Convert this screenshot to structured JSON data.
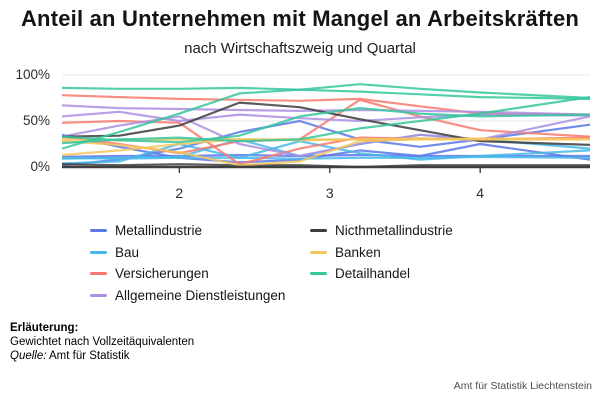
{
  "header": {
    "title": "Anteil an Unternehmen mit Mangel an Arbeitskräften",
    "subtitle": "nach Wirtschaftszweig und Quartal"
  },
  "chart_data": {
    "type": "line",
    "title": "Anteil an Unternehmen mit Mangel an Arbeitskräften",
    "subtitle": "nach Wirtschaftszweig und Quartal",
    "xlabel": "",
    "ylabel": "",
    "xlim": [
      1.22,
      4.73
    ],
    "ylim": [
      0,
      100
    ],
    "x": [
      1.22,
      1.6,
      2.0,
      2.4,
      2.8,
      3.2,
      3.6,
      4.0,
      4.73
    ],
    "xticks": [
      2,
      3,
      4
    ],
    "yticks": [
      {
        "value": 0,
        "label": "0%"
      },
      {
        "value": 50,
        "label": "50%"
      },
      {
        "value": 100,
        "label": "100%"
      }
    ],
    "grid": "horizontal",
    "legend_position": "bottom",
    "axis_color": "#3f3f3f",
    "grid_color": "#e7e7e7",
    "series": [
      {
        "name": "Metallindustrie",
        "color": "#5b78e8",
        "legend_column": 1,
        "traces": [
          [
            2,
            8,
            20,
            38,
            50,
            30,
            22,
            30,
            46
          ],
          [
            11,
            12,
            12,
            13,
            12,
            13,
            12,
            12,
            12
          ],
          [
            35,
            22,
            10,
            5,
            8,
            18,
            12,
            25,
            8
          ]
        ]
      },
      {
        "name": "Bau",
        "color": "#47b8ea",
        "legend_column": 1,
        "traces": [
          [
            9,
            10,
            11,
            30,
            12,
            25,
            35,
            30,
            20
          ],
          [
            10,
            9,
            10,
            10,
            9,
            10,
            10,
            11,
            10
          ],
          [
            4,
            6,
            25,
            10,
            28,
            15,
            8,
            12,
            18
          ]
        ]
      },
      {
        "name": "Versicherungen",
        "color": "#f8796f",
        "legend_column": 1,
        "traces": [
          [
            78,
            76,
            74,
            73,
            72,
            74,
            66,
            58,
            57
          ],
          [
            48,
            50,
            48,
            3,
            20,
            32,
            31,
            30,
            32
          ],
          [
            33,
            25,
            15,
            28,
            30,
            73,
            55,
            40,
            33
          ]
        ]
      },
      {
        "name": "Allgemeine Dienstleistungen",
        "color": "#ab8fe0",
        "legend_column": 1,
        "traces": [
          [
            67,
            64,
            63,
            62,
            61,
            62,
            61,
            60,
            57
          ],
          [
            55,
            60,
            50,
            57,
            53,
            50,
            54,
            57,
            56
          ],
          [
            33,
            45,
            55,
            25,
            12,
            25,
            35,
            30,
            55
          ]
        ]
      },
      {
        "name": "Nicthmetallindustrie",
        "color": "#3d3d3d",
        "legend_column": 2,
        "traces": [
          [
            33,
            34,
            45,
            70,
            65,
            52,
            40,
            28,
            24
          ],
          [
            3,
            2,
            3,
            2,
            2,
            0,
            2,
            2,
            2
          ]
        ]
      },
      {
        "name": "Banken",
        "color": "#f5c55e",
        "legend_column": 2,
        "traces": [
          [
            30,
            29,
            30,
            30,
            30,
            30,
            31,
            30,
            30
          ],
          [
            28,
            24,
            16,
            2,
            6,
            28,
            30,
            30,
            30
          ],
          [
            13,
            18,
            25,
            30,
            29,
            30,
            30,
            31,
            30
          ]
        ]
      },
      {
        "name": "Detailhandel",
        "color": "#35c79e",
        "legend_column": 2,
        "traces": [
          [
            86,
            85,
            85,
            86,
            84,
            90,
            85,
            81,
            75
          ],
          [
            20,
            38,
            58,
            80,
            84,
            82,
            79,
            76,
            74
          ],
          [
            33,
            29,
            27,
            34,
            55,
            64,
            58,
            55,
            57
          ],
          [
            26,
            30,
            32,
            28,
            30,
            42,
            50,
            58,
            76
          ]
        ]
      }
    ]
  },
  "footer": {
    "heading": "Erläuterung:",
    "note": "Gewichtet nach Vollzeitäquivalenten",
    "source_label": "Quelle:",
    "source_text": "Amt für Statistik"
  },
  "watermark": "Amt für Statistik Liechtenstein"
}
